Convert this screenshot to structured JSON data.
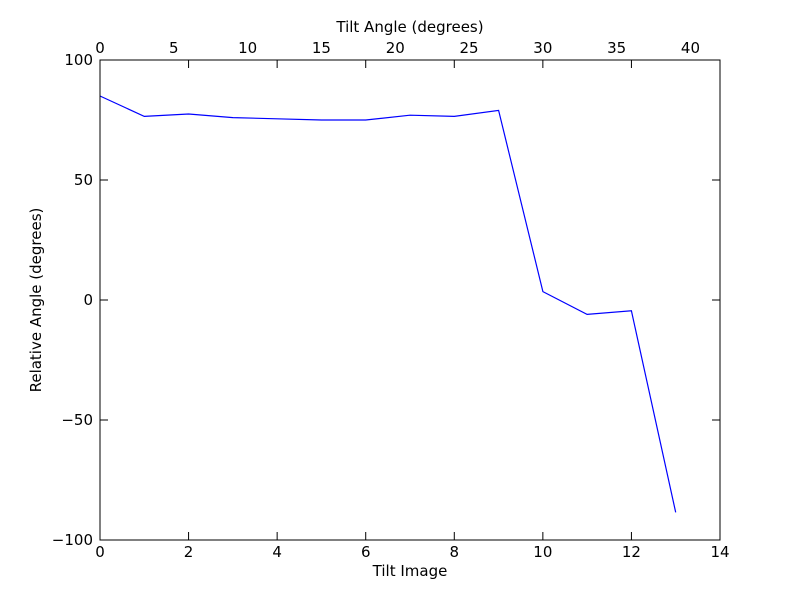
{
  "chart_data": {
    "type": "line",
    "xlabel": "Tilt Image",
    "x2label": "Tilt Angle (degrees)",
    "ylabel": "Relative Angle (degrees)",
    "xlim": [
      0,
      14
    ],
    "x2lim": [
      0,
      42
    ],
    "ylim": [
      -100,
      100
    ],
    "xticks": [
      0,
      2,
      4,
      6,
      8,
      10,
      12,
      14
    ],
    "x2ticks": [
      0,
      5,
      10,
      15,
      20,
      25,
      30,
      35,
      40
    ],
    "yticks": [
      100,
      50,
      0,
      -50,
      -100
    ],
    "ytick_labels": [
      "100",
      "50",
      "0",
      "−50",
      "−100"
    ],
    "grid": false,
    "line_color": "#0000ff",
    "series": [
      {
        "x": [
          0,
          1,
          2,
          3,
          4,
          5,
          6,
          7,
          8,
          9,
          10,
          11,
          12,
          13
        ],
        "values": [
          85,
          76.5,
          77.5,
          76,
          75.5,
          75,
          75,
          77,
          76.5,
          79,
          3.5,
          -6,
          -4.5,
          -88.5
        ]
      }
    ]
  }
}
